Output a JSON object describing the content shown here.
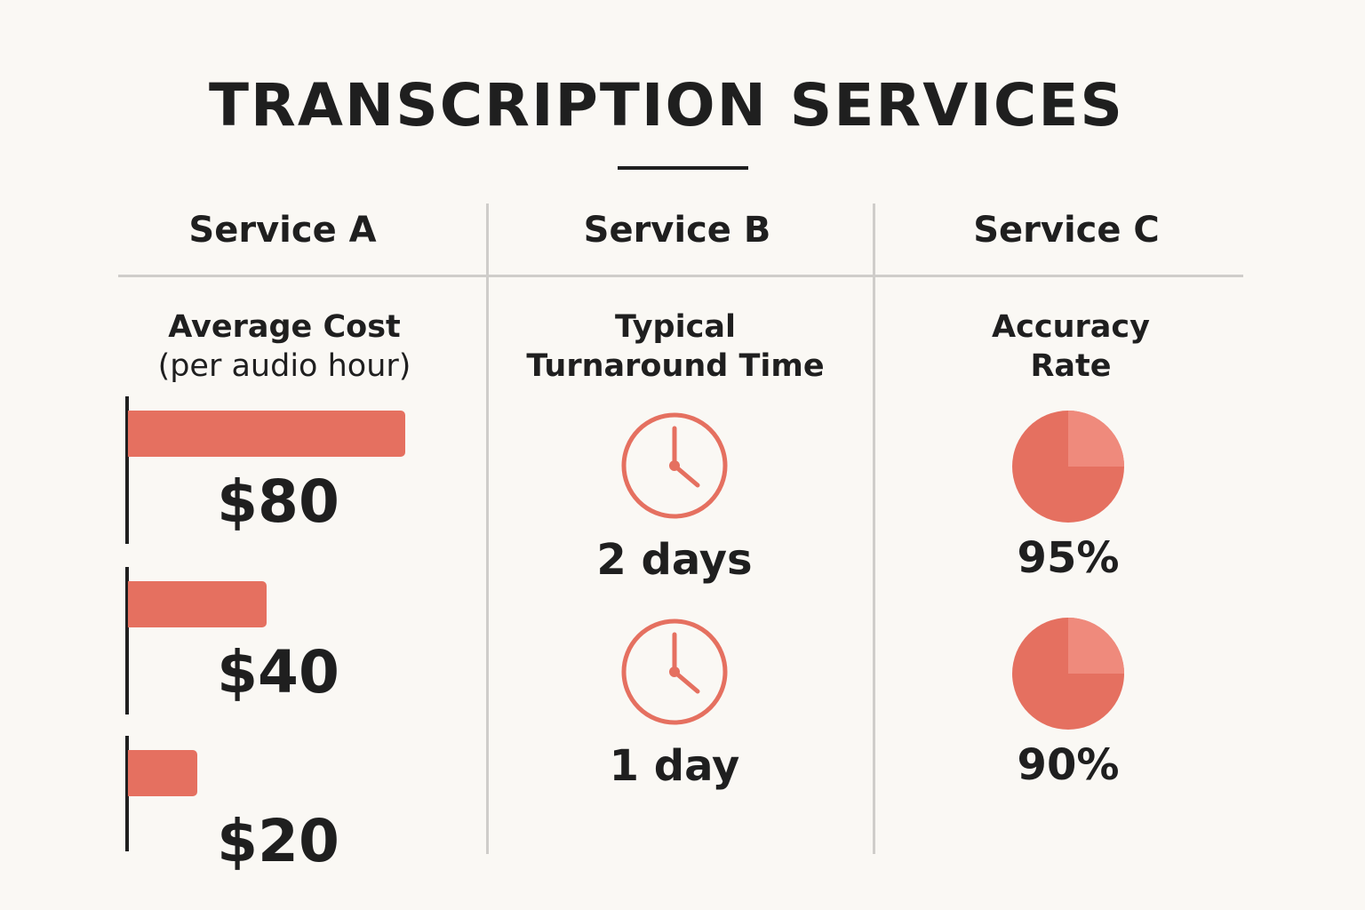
{
  "chart_data": {
    "type": "table",
    "title": "TRANSCRIPTION SERVICES",
    "columns": [
      "Service A",
      "Service B",
      "Service C"
    ],
    "metrics": [
      {
        "column": "Service A",
        "label_line1": "Average Cost",
        "label_line2": "(per audio hour)",
        "type": "bar",
        "values": [
          80,
          40,
          20
        ],
        "labels": [
          "$80",
          "$40",
          "$20"
        ]
      },
      {
        "column": "Service B",
        "label_line1": "Typical",
        "label_line2": "Turnaround Time",
        "type": "icon",
        "icon": "clock-icon",
        "values": [
          2,
          1
        ],
        "labels": [
          "2 days",
          "1 day"
        ]
      },
      {
        "column": "Service C",
        "label_line1": "Accuracy",
        "label_line2": "Rate",
        "type": "pie",
        "values": [
          95,
          90
        ],
        "labels": [
          "95%",
          "90%"
        ]
      }
    ],
    "colors": {
      "accent": "#e57060",
      "accent_light": "#ef8a7c",
      "text": "#1f1f1f",
      "rule": "#cfcdca",
      "background": "#faf8f4"
    }
  }
}
